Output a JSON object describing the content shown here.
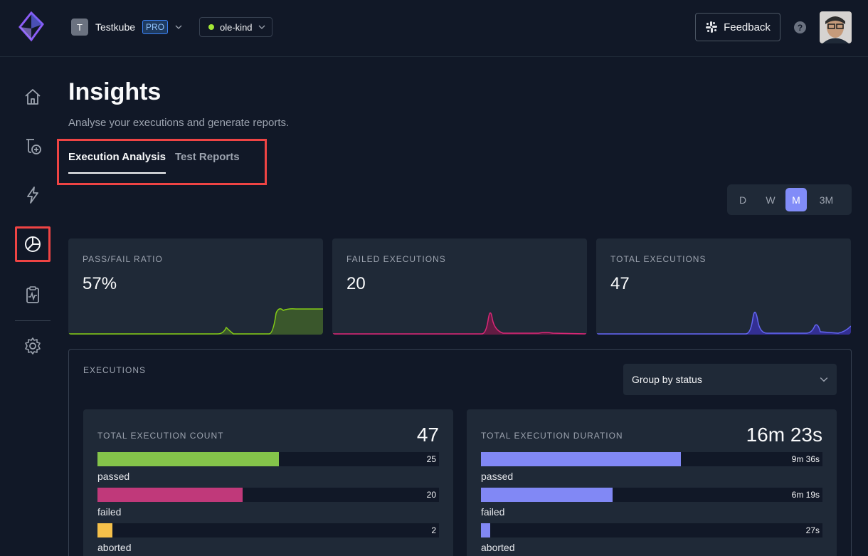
{
  "header": {
    "org_initial": "T",
    "org_name": "Testkube",
    "org_badge": "PRO",
    "environment": "ole-kind",
    "feedback_label": "Feedback",
    "help_label": "?"
  },
  "sidebar": {
    "items": [
      {
        "name": "home",
        "icon": "home-icon"
      },
      {
        "name": "tests",
        "icon": "add-test-icon"
      },
      {
        "name": "triggers",
        "icon": "lightning-icon"
      },
      {
        "name": "insights",
        "icon": "pie-chart-icon",
        "active": true
      },
      {
        "name": "reports",
        "icon": "clipboard-chart-icon"
      },
      {
        "name": "settings",
        "icon": "gear-icon"
      }
    ]
  },
  "page": {
    "title": "Insights",
    "subtitle": "Analyse your executions and generate reports."
  },
  "tabs": [
    {
      "label": "Execution Analysis",
      "active": true
    },
    {
      "label": "Test Reports",
      "active": false
    }
  ],
  "periods": [
    {
      "label": "D",
      "selected": false
    },
    {
      "label": "W",
      "selected": false
    },
    {
      "label": "M",
      "selected": true
    },
    {
      "label": "3M",
      "selected": false
    }
  ],
  "metrics": [
    {
      "label": "PASS/FAIL RATIO",
      "value": "57%",
      "color": "#84cc16"
    },
    {
      "label": "FAILED EXECUTIONS",
      "value": "20",
      "color": "#db2777"
    },
    {
      "label": "TOTAL EXECUTIONS",
      "value": "47",
      "color": "#6366f1"
    }
  ],
  "executions": {
    "label": "EXECUTIONS",
    "group_by": "Group by status",
    "count_card": {
      "title": "TOTAL EXECUTION COUNT",
      "total": "47",
      "rows": [
        {
          "label": "passed",
          "value": "25",
          "fraction": 0.532,
          "color": "#84c44a"
        },
        {
          "label": "failed",
          "value": "20",
          "fraction": 0.426,
          "color": "#c0397a"
        },
        {
          "label": "aborted",
          "value": "2",
          "fraction": 0.043,
          "color": "#f5c04a"
        }
      ]
    },
    "duration_card": {
      "title": "TOTAL EXECUTION DURATION",
      "total": "16m 23s",
      "rows": [
        {
          "label": "passed",
          "value": "9m 36s",
          "fraction": 0.586,
          "color": "#8188f5"
        },
        {
          "label": "failed",
          "value": "6m 19s",
          "fraction": 0.386,
          "color": "#8188f5"
        },
        {
          "label": "aborted",
          "value": "27s",
          "fraction": 0.027,
          "color": "#8188f5"
        }
      ]
    }
  }
}
